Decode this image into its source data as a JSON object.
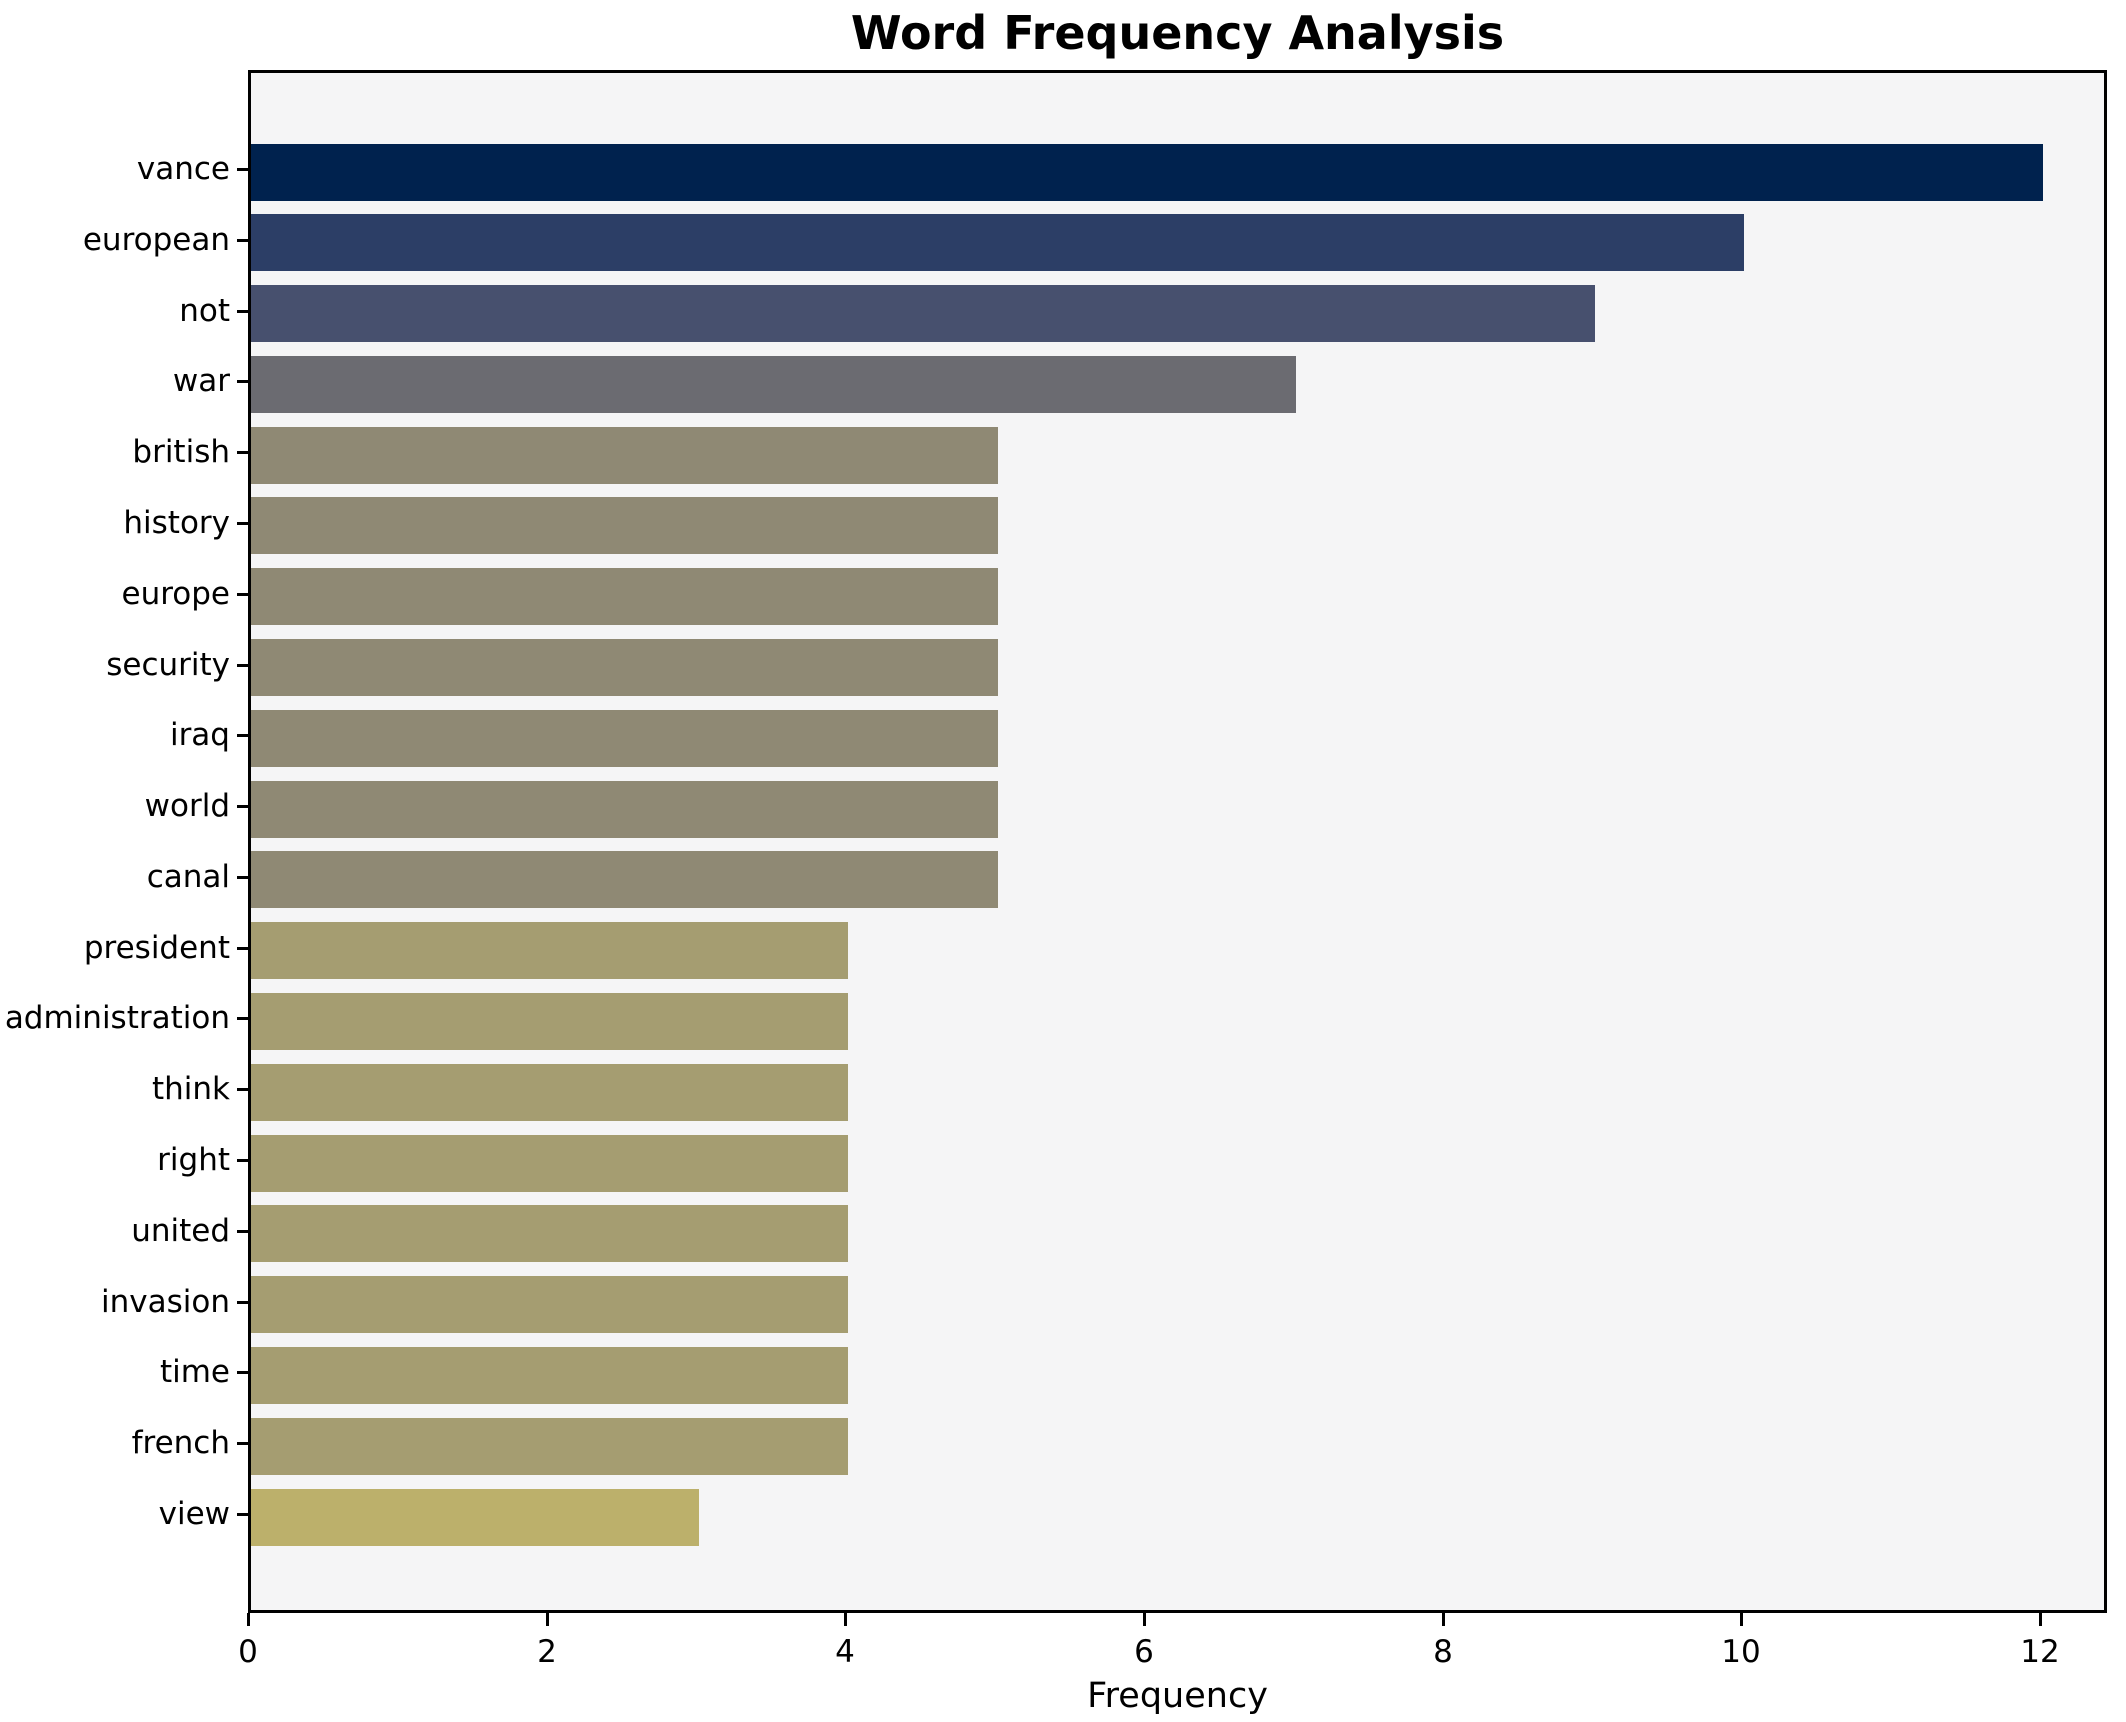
{
  "header": {
    "title": "Word Frequency Analysis"
  },
  "axes": {
    "xlabel": "Frequency"
  },
  "chart_data": {
    "type": "bar",
    "orientation": "horizontal",
    "title": "Word Frequency Analysis",
    "xlabel": "Frequency",
    "ylabel": "",
    "categories": [
      "vance",
      "european",
      "not",
      "war",
      "british",
      "history",
      "europe",
      "security",
      "iraq",
      "world",
      "canal",
      "president",
      "administration",
      "think",
      "right",
      "united",
      "invasion",
      "time",
      "french",
      "view"
    ],
    "values": [
      12,
      10,
      9,
      7,
      5,
      5,
      5,
      5,
      5,
      5,
      5,
      4,
      4,
      4,
      4,
      4,
      4,
      4,
      4,
      3
    ],
    "bar_colors": [
      "#00224e",
      "#2c3e66",
      "#47506e",
      "#6b6b71",
      "#8f8974",
      "#8f8974",
      "#8f8974",
      "#8f8974",
      "#8f8974",
      "#8f8974",
      "#8f8974",
      "#a59d71",
      "#a59d71",
      "#a59d71",
      "#a59d71",
      "#a59d71",
      "#a59d71",
      "#a59d71",
      "#a59d71",
      "#bcb06b"
    ],
    "xticks": [
      0,
      2,
      4,
      6,
      8,
      10,
      12
    ],
    "xlim": [
      0,
      12.45
    ],
    "grid": false,
    "legend": null,
    "plot_background": "#f5f5f6",
    "figure_background": "#ffffff"
  }
}
